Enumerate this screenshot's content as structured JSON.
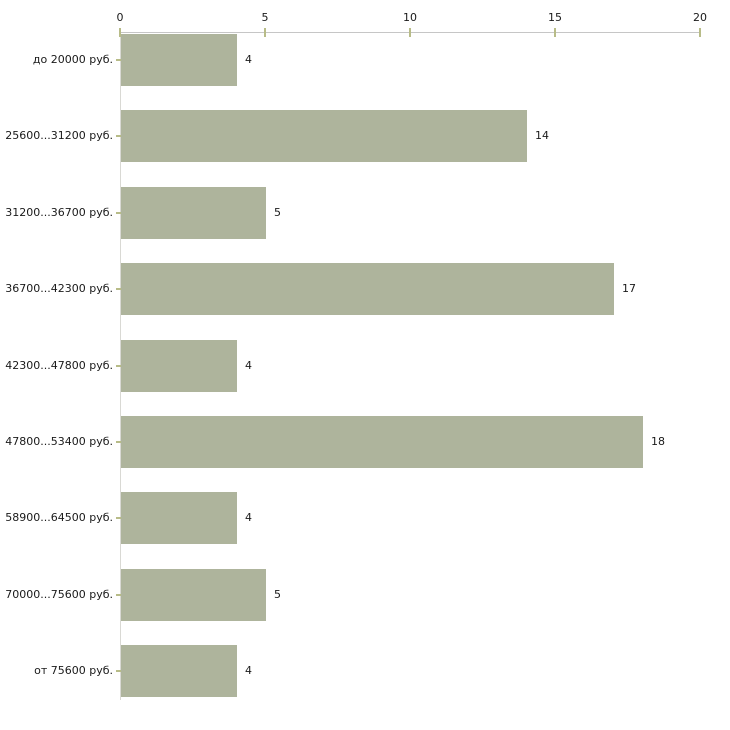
{
  "chart_data": {
    "type": "bar",
    "orientation": "horizontal",
    "title": "",
    "xlabel": "",
    "ylabel": "",
    "categories": [
      "до 20000 руб.",
      "25600...31200 руб.",
      "31200...36700 руб.",
      "36700...42300 руб.",
      "42300...47800 руб.",
      "47800...53400 руб.",
      "58900...64500 руб.",
      "70000...75600 руб.",
      "от 75600 руб."
    ],
    "values": [
      4,
      14,
      5,
      17,
      4,
      18,
      4,
      5,
      4
    ],
    "xlim": [
      0,
      20
    ],
    "x_ticks": [
      0,
      5,
      10,
      15,
      20
    ],
    "x_axis_position": "top",
    "grid": false,
    "legend": false,
    "colors": {
      "bar_fill": "#aeb49c",
      "tick_mark": "#b8bc88",
      "x_axis_line": "#c6c6c6",
      "y_axis_line": "#d9d9d4",
      "text": "#1a1a1a"
    }
  }
}
